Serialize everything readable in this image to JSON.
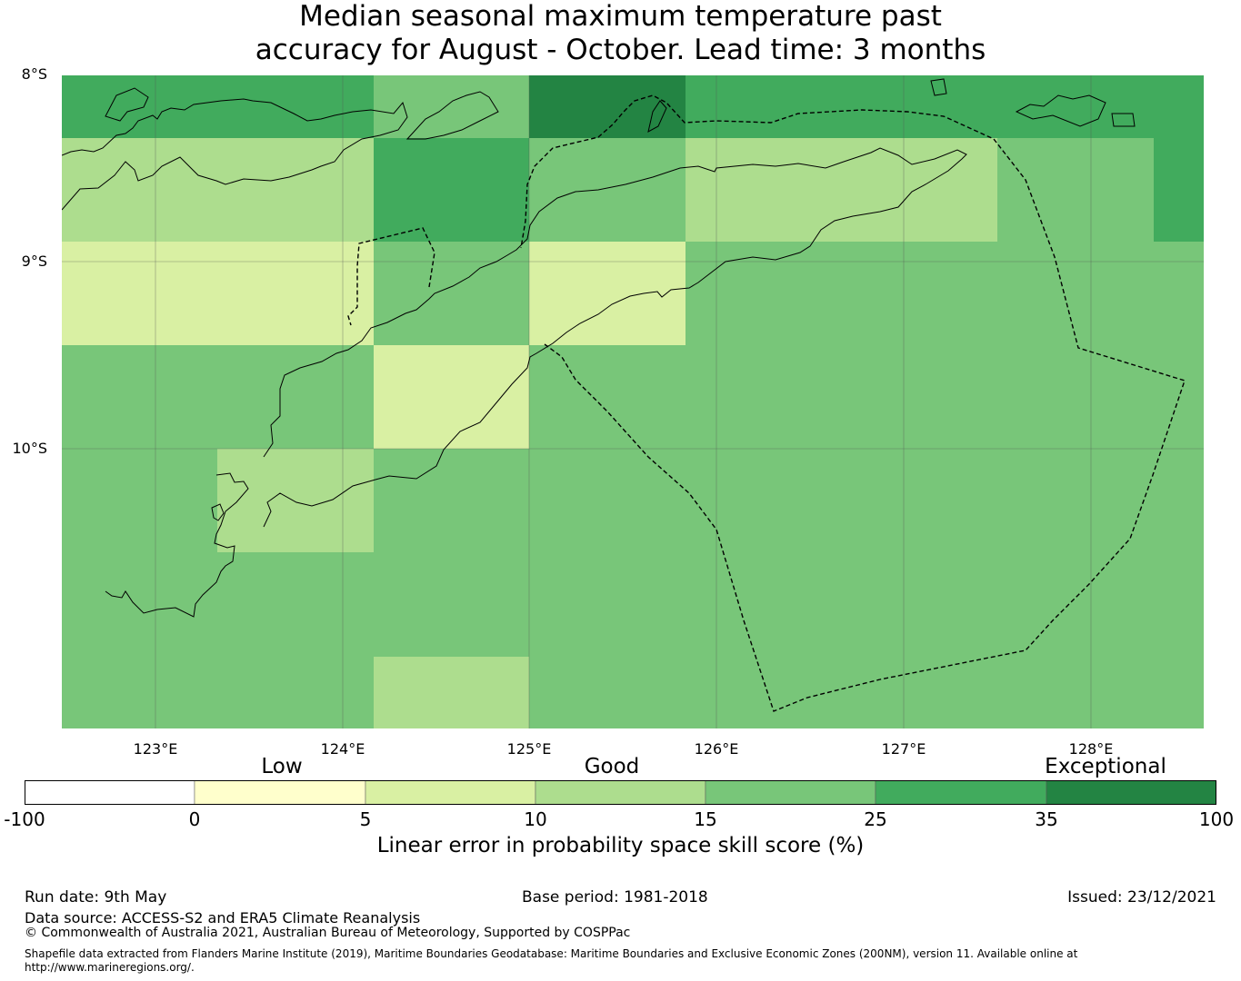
{
  "title_line1": "Median seasonal maximum temperature past",
  "title_line2": "accuracy for August - October. Lead time: 3 months",
  "lat_labels": [
    "8°S",
    "9°S",
    "10°S"
  ],
  "lon_labels": [
    "123°E",
    "124°E",
    "125°E",
    "126°E",
    "127°E",
    "128°E"
  ],
  "colorbar": {
    "categories": [
      "Low",
      "Good",
      "Exceptional"
    ],
    "ticks": [
      "-100",
      "0",
      "5",
      "10",
      "15",
      "25",
      "35",
      "100"
    ],
    "colors": [
      "#ffffff",
      "#ffffcc",
      "#d9f0a3",
      "#addd8e",
      "#78c679",
      "#41ab5d",
      "#238443"
    ],
    "label": "Linear error in probability space skill score (%)"
  },
  "footer": {
    "run_date": "Run date: 9th May",
    "base_period": "Base period: 1981-2018",
    "issued": "Issued: 23/12/2021",
    "data_source": "Data source: ACCESS-S2 and ERA5 Climate Reanalysis",
    "copyright": "© Commonwealth of Australia 2021, Australian Bureau of Meteorology, Supported by COSPPac",
    "shapefile_line1": "Shapefile data extracted from Flanders Marine Institute (2019), Maritime Boundaries Geodatabase: Maritime Boundaries and Exclusive Economic Zones (200NM), version 11. Available online at",
    "shapefile_line2": "http://www.marineregions.org/."
  },
  "map_colors": {
    "exceptional": "#238443",
    "c25_35": "#41ab5d",
    "c15_25": "#78c679",
    "c10_15": "#addd8e",
    "c5_10": "#d9f0a3"
  }
}
